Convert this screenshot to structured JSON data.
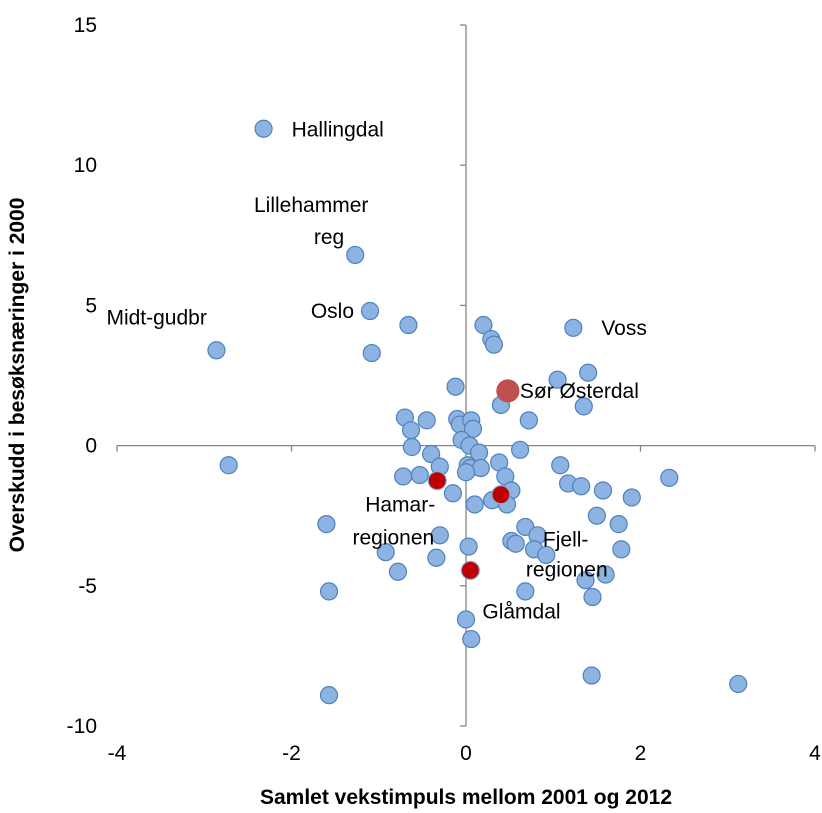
{
  "chart_data": {
    "type": "scatter",
    "xlabel": "Samlet vekstimpuls mellom 2001 og 2012",
    "ylabel": "Overskudd i besøksnæringer i 2000",
    "xlim": [
      -4,
      4
    ],
    "ylim": [
      -10,
      15
    ],
    "xticks": [
      "-4",
      "-2",
      "0",
      "2",
      "4"
    ],
    "yticks": [
      "-10",
      "-5",
      "0",
      "5",
      "10",
      "15"
    ],
    "grid": false,
    "legend": "none",
    "colors": {
      "points": "#8db3e2",
      "points_edge": "#4f81bd",
      "highlight": "#c00000",
      "highlight_large": "#c0504d",
      "axis": "#868686"
    },
    "series": [
      {
        "points": [
          [
            -2.32,
            11.3
          ],
          [
            -1.27,
            6.8
          ],
          [
            -1.1,
            4.8
          ],
          [
            -0.66,
            4.3
          ],
          [
            -1.08,
            3.3
          ],
          [
            -2.86,
            3.4
          ],
          [
            -2.72,
            -0.7
          ],
          [
            -0.7,
            1.0
          ],
          [
            -0.45,
            0.9
          ],
          [
            -0.63,
            0.55
          ],
          [
            -0.62,
            -0.05
          ],
          [
            -0.4,
            -0.3
          ],
          [
            -0.53,
            -1.05
          ],
          [
            -0.72,
            -1.1
          ],
          [
            -0.3,
            -0.75
          ],
          [
            -0.15,
            -1.7
          ],
          [
            -1.6,
            -2.8
          ],
          [
            -0.92,
            -3.8
          ],
          [
            -0.3,
            -3.2
          ],
          [
            -0.78,
            -4.5
          ],
          [
            -0.34,
            -4.0
          ],
          [
            -1.57,
            -5.2
          ],
          [
            -1.57,
            -8.9
          ],
          [
            0.0,
            -6.2
          ],
          [
            0.06,
            -6.9
          ],
          [
            0.03,
            -3.6
          ],
          [
            0.1,
            -2.1
          ],
          [
            -0.12,
            2.1
          ],
          [
            -0.1,
            0.95
          ],
          [
            -0.07,
            0.75
          ],
          [
            0.06,
            0.9
          ],
          [
            0.08,
            0.6
          ],
          [
            -0.05,
            0.2
          ],
          [
            0.04,
            0.0
          ],
          [
            0.15,
            -0.25
          ],
          [
            0.02,
            -0.7
          ],
          [
            0.05,
            -0.8
          ],
          [
            0.17,
            -0.8
          ],
          [
            0.0,
            -0.95
          ],
          [
            0.2,
            4.3
          ],
          [
            0.29,
            3.8
          ],
          [
            0.32,
            3.6
          ],
          [
            0.4,
            1.45
          ],
          [
            0.38,
            -0.6
          ],
          [
            0.45,
            -1.1
          ],
          [
            0.52,
            -1.6
          ],
          [
            0.3,
            -1.95
          ],
          [
            0.47,
            -2.1
          ],
          [
            0.62,
            -0.15
          ],
          [
            0.72,
            0.9
          ],
          [
            0.68,
            -2.9
          ],
          [
            0.82,
            -3.2
          ],
          [
            0.52,
            -3.4
          ],
          [
            0.57,
            -3.5
          ],
          [
            0.78,
            -3.7
          ],
          [
            0.68,
            -5.2
          ],
          [
            0.92,
            -3.9
          ],
          [
            1.05,
            2.35
          ],
          [
            1.08,
            -0.7
          ],
          [
            1.17,
            -1.35
          ],
          [
            1.23,
            4.2
          ],
          [
            1.4,
            2.6
          ],
          [
            1.35,
            1.4
          ],
          [
            1.32,
            -1.45
          ],
          [
            1.5,
            -2.5
          ],
          [
            1.57,
            -1.6
          ],
          [
            1.75,
            -2.8
          ],
          [
            1.78,
            -3.7
          ],
          [
            1.6,
            -4.6
          ],
          [
            1.37,
            -4.8
          ],
          [
            1.45,
            -5.4
          ],
          [
            1.9,
            -1.85
          ],
          [
            1.44,
            -8.2
          ],
          [
            2.33,
            -1.15
          ],
          [
            3.12,
            -8.5
          ]
        ]
      },
      {
        "points": [
          [
            -0.33,
            -1.25
          ],
          [
            0.4,
            -1.75
          ],
          [
            0.05,
            -4.45
          ]
        ]
      },
      {
        "points": [
          [
            0.48,
            1.95
          ]
        ]
      }
    ],
    "annotations": [
      {
        "text": "Hallingdal",
        "x": -2.32,
        "y": 11.3
      },
      {
        "text": "Lillehammer",
        "x": -1.27,
        "y": 6.8
      },
      {
        "text": "reg",
        "x": -1.27,
        "y": 6.8
      },
      {
        "text": "Oslo",
        "x": -1.1,
        "y": 4.8
      },
      {
        "text": "Midt-gudbr",
        "x": -2.86,
        "y": 3.4
      },
      {
        "text": "Voss",
        "x": 1.23,
        "y": 4.2
      },
      {
        "text": "Sør Østerdal",
        "x": 0.48,
        "y": 1.95
      },
      {
        "text": "Hamar-",
        "x": -0.33,
        "y": -1.25
      },
      {
        "text": "regionen",
        "x": -0.33,
        "y": -1.25
      },
      {
        "text": "Fjell-",
        "x": 0.4,
        "y": -1.75
      },
      {
        "text": "regionen",
        "x": 0.4,
        "y": -1.75
      },
      {
        "text": "Glåmdal",
        "x": 0.05,
        "y": -4.45
      }
    ]
  }
}
